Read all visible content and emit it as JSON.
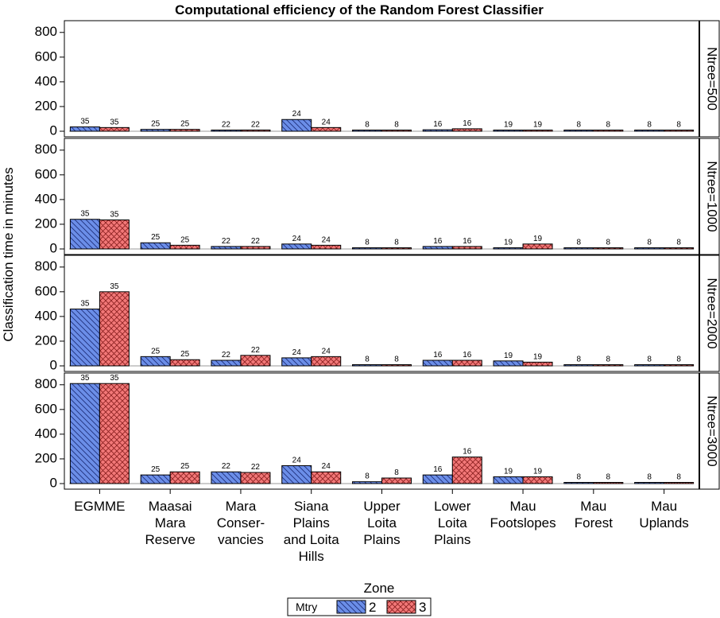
{
  "chart_data": {
    "type": "bar",
    "title": "Computational efficiency of the Random Forest Classifier",
    "ylabel": "Classification time in minutes",
    "xlabel": "Zone",
    "ylim": [
      0,
      850
    ],
    "yticks": [
      0,
      200,
      400,
      600,
      800
    ],
    "categories": [
      [
        "EGMME"
      ],
      [
        "Maasai",
        "Mara",
        "Reserve"
      ],
      [
        "Mara",
        "Conser-",
        "vancies"
      ],
      [
        "Siana",
        "Plains",
        "and Loita",
        "Hills"
      ],
      [
        "Upper",
        "Loita",
        "Plains"
      ],
      [
        "Lower",
        "Loita",
        "Plains"
      ],
      [
        "Mau",
        "Footslopes"
      ],
      [
        "Mau",
        "Forest"
      ],
      [
        "Mau",
        "Uplands"
      ]
    ],
    "legend": {
      "title": "Mtry",
      "entries": [
        {
          "name": "2",
          "color": "#6b8ee8",
          "pattern": "hatch"
        },
        {
          "name": "3",
          "color": "#f27878",
          "pattern": "crosshatch"
        }
      ]
    },
    "panels": [
      {
        "label": "Ntree=500",
        "series": [
          {
            "name": "2",
            "values": [
              35,
              15,
              3,
              95,
              2,
              12,
              8,
              2,
              2
            ],
            "labels": [
              "35",
              "25",
              "22",
              "24",
              "8",
              "16",
              "19",
              "8",
              "8"
            ]
          },
          {
            "name": "3",
            "values": [
              30,
              15,
              10,
              30,
              2,
              20,
              8,
              2,
              2
            ],
            "labels": [
              "35",
              "25",
              "22",
              "24",
              "8",
              "16",
              "19",
              "8",
              "8"
            ]
          }
        ]
      },
      {
        "label": "Ntree=1000",
        "series": [
          {
            "name": "2",
            "values": [
              240,
              50,
              20,
              40,
              2,
              20,
              10,
              2,
              2
            ],
            "labels": [
              "35",
              "25",
              "22",
              "24",
              "8",
              "16",
              "19",
              "8",
              "8"
            ]
          },
          {
            "name": "3",
            "values": [
              235,
              30,
              20,
              30,
              2,
              20,
              40,
              2,
              2
            ],
            "labels": [
              "35",
              "25",
              "22",
              "24",
              "8",
              "16",
              "19",
              "8",
              "8"
            ]
          }
        ]
      },
      {
        "label": "Ntree=2000",
        "series": [
          {
            "name": "2",
            "values": [
              460,
              75,
              45,
              65,
              5,
              45,
              40,
              2,
              2
            ],
            "labels": [
              "35",
              "25",
              "22",
              "24",
              "8",
              "16",
              "19",
              "8",
              "8"
            ]
          },
          {
            "name": "3",
            "values": [
              600,
              50,
              85,
              75,
              5,
              45,
              30,
              2,
              2
            ],
            "labels": [
              "35",
              "25",
              "22",
              "24",
              "8",
              "16",
              "19",
              "8",
              "8"
            ]
          }
        ]
      },
      {
        "label": "Ntree=3000",
        "series": [
          {
            "name": "2",
            "values": [
              810,
              70,
              95,
              145,
              15,
              70,
              55,
              2,
              2
            ],
            "labels": [
              "35",
              "25",
              "22",
              "24",
              "8",
              "16",
              "19",
              "8",
              "8"
            ]
          },
          {
            "name": "3",
            "values": [
              810,
              95,
              90,
              95,
              45,
              215,
              55,
              2,
              2
            ],
            "labels": [
              "35",
              "25",
              "22",
              "24",
              "8",
              "16",
              "19",
              "8",
              "8"
            ]
          }
        ]
      }
    ]
  }
}
